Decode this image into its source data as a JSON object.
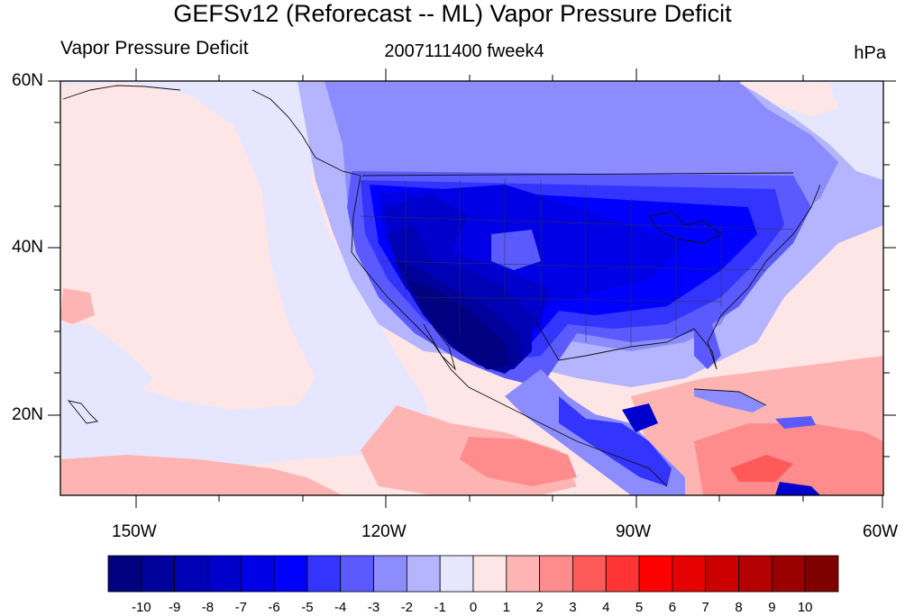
{
  "title": "GEFSv12 (Reforecast -- ML) Vapor Pressure Deficit",
  "left_string": "Vapor Pressure Deficit",
  "center_string": "2007111400 fweek4",
  "right_string": "hPa",
  "lat_labels": [
    "60N",
    "40N",
    "20N"
  ],
  "lon_labels": [
    "150W",
    "120W",
    "90W",
    "60W"
  ],
  "colorbar": {
    "labels": [
      "-10",
      "-9",
      "-8",
      "-7",
      "-6",
      "-5",
      "-4",
      "-3",
      "-2",
      "-1",
      "0",
      "1",
      "2",
      "3",
      "4",
      "5",
      "6",
      "7",
      "8",
      "9",
      "10"
    ],
    "colors": [
      "#000080",
      "#00009a",
      "#0000b4",
      "#0000cc",
      "#0000e6",
      "#0000ff",
      "#3434ff",
      "#5a5aff",
      "#8c8cff",
      "#b4b4ff",
      "#e6e6ff",
      "#ffe6e6",
      "#ffb4b4",
      "#ff8c8c",
      "#ff5a5a",
      "#ff3434",
      "#ff0000",
      "#e60000",
      "#cc0000",
      "#b40000",
      "#9a0000",
      "#800000"
    ]
  }
}
